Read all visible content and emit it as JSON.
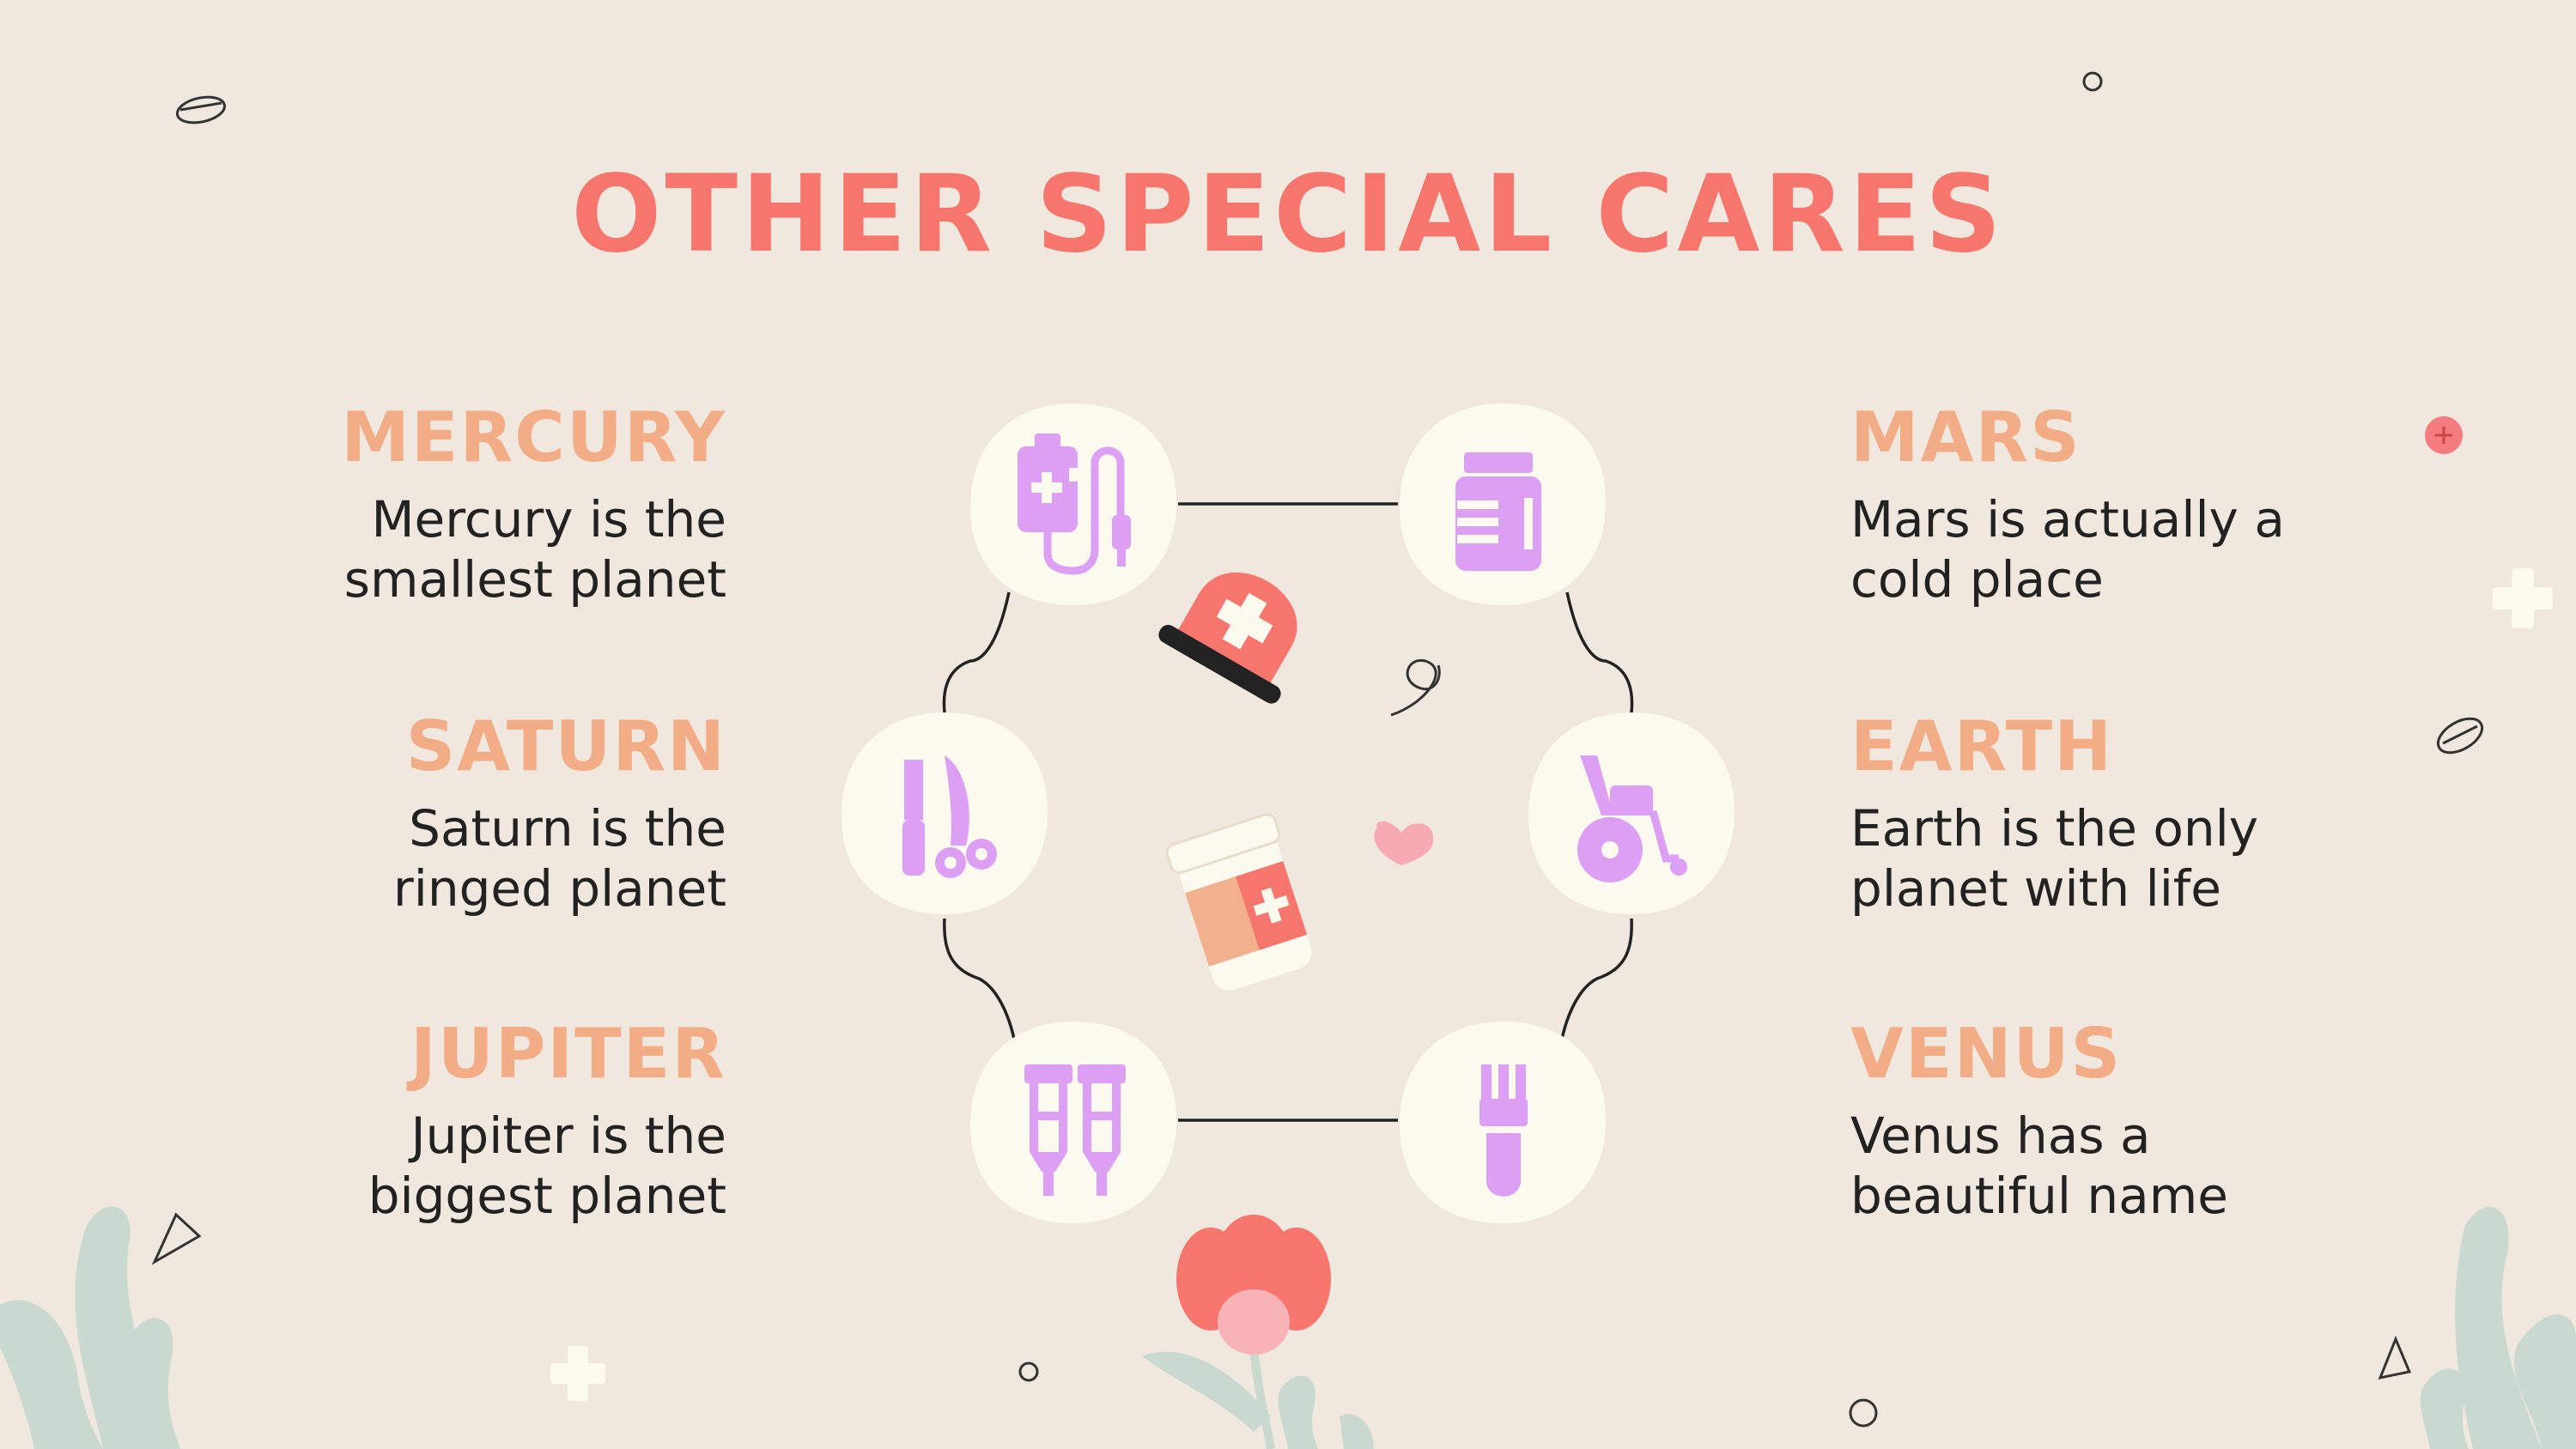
{
  "slide": {
    "title": "OTHER SPECIAL CARES",
    "items": [
      {
        "heading": "MERCURY",
        "line1": "Mercury is the",
        "line2": "smallest planet",
        "side": "left"
      },
      {
        "heading": "SATURN",
        "line1": "Saturn is the",
        "line2": "ringed planet",
        "side": "left"
      },
      {
        "heading": "JUPITER",
        "line1": "Jupiter is the",
        "line2": "biggest planet",
        "side": "left"
      },
      {
        "heading": "MARS",
        "line1": "Mars is actually a",
        "line2": "cold place",
        "side": "right"
      },
      {
        "heading": "EARTH",
        "line1": "Earth is the only",
        "line2": "planet with life",
        "side": "right"
      },
      {
        "heading": "VENUS",
        "line1": "Venus has a",
        "line2": "beautiful name",
        "side": "right"
      }
    ]
  },
  "icons": [
    "iv-drip-icon",
    "medicine-jar-icon",
    "surgical-tools-icon",
    "wheelchair-icon",
    "crutches-icon",
    "test-tube-icon",
    "emergency-siren-icon",
    "pill-bottle-icon",
    "heart-icon",
    "flower-icon",
    "plus-icon"
  ],
  "colors": {
    "background": "#f0e8de",
    "title": "#f6766d",
    "heading": "#f3ad86",
    "icon_fill": "#dd9ff3",
    "icon_bg": "#fcf9ef",
    "accent_red": "#f6766d",
    "leaf": "#c9d9cf"
  }
}
